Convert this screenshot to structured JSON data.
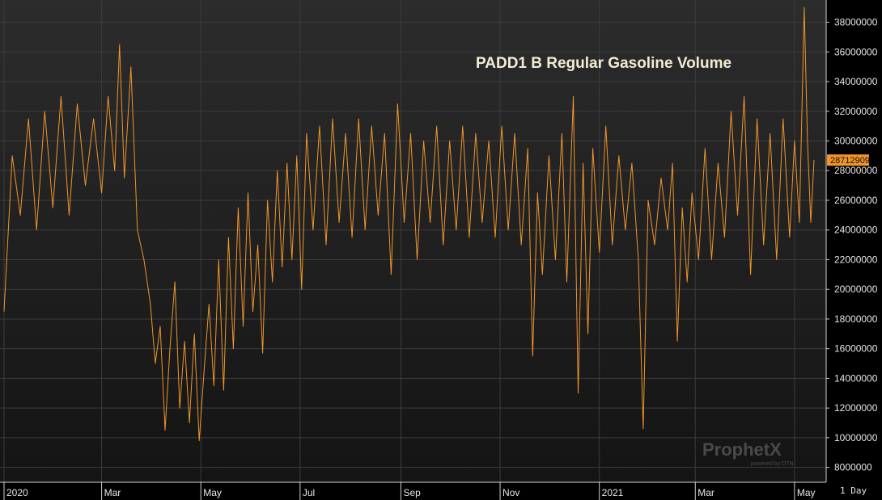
{
  "chart_data": {
    "type": "line",
    "title": "PADD1 B Regular Gasoline Volume",
    "xlabel": "",
    "ylabel": "",
    "ylim": [
      7000000,
      39500000
    ],
    "y_ticks": [
      8000000,
      10000000,
      12000000,
      14000000,
      16000000,
      18000000,
      20000000,
      22000000,
      24000000,
      26000000,
      28000000,
      30000000,
      32000000,
      34000000,
      36000000,
      38000000
    ],
    "y_tick_labels": [
      "8000000",
      "10000000",
      "12000000",
      "14000000",
      "16000000",
      "18000000",
      "20000000",
      "22000000",
      "24000000",
      "26000000",
      "28000000",
      "30000000",
      "32000000",
      "34000000",
      "36000000",
      "38000000"
    ],
    "x_tick_labels": [
      "2020",
      "Mar",
      "May",
      "Jul",
      "Sep",
      "Nov",
      "2021",
      "Mar",
      "May"
    ],
    "x_tick_dates": [
      "2020-01-01",
      "2020-03-01",
      "2020-05-01",
      "2020-07-01",
      "2020-09-01",
      "2020-11-01",
      "2021-01-01",
      "2021-03-01",
      "2021-05-01"
    ],
    "x_range": [
      "2020-01-01",
      "2021-05-14"
    ],
    "series": [
      {
        "name": "",
        "color": "#f0952a",
        "points": [
          [
            "2020-01-01",
            18500000
          ],
          [
            "2020-01-06",
            29000000
          ],
          [
            "2020-01-11",
            25000000
          ],
          [
            "2020-01-16",
            31500000
          ],
          [
            "2020-01-21",
            24000000
          ],
          [
            "2020-01-26",
            32000000
          ],
          [
            "2020-01-31",
            25500000
          ],
          [
            "2020-02-05",
            33000000
          ],
          [
            "2020-02-10",
            25000000
          ],
          [
            "2020-02-15",
            32500000
          ],
          [
            "2020-02-20",
            27000000
          ],
          [
            "2020-02-25",
            31500000
          ],
          [
            "2020-03-01",
            26500000
          ],
          [
            "2020-03-05",
            33000000
          ],
          [
            "2020-03-09",
            28000000
          ],
          [
            "2020-03-12",
            36500000
          ],
          [
            "2020-03-15",
            27500000
          ],
          [
            "2020-03-19",
            35000000
          ],
          [
            "2020-03-23",
            24000000
          ],
          [
            "2020-03-27",
            22000000
          ],
          [
            "2020-03-31",
            19000000
          ],
          [
            "2020-04-03",
            15000000
          ],
          [
            "2020-04-06",
            17500000
          ],
          [
            "2020-04-09",
            10500000
          ],
          [
            "2020-04-12",
            16000000
          ],
          [
            "2020-04-15",
            20500000
          ],
          [
            "2020-04-18",
            12000000
          ],
          [
            "2020-04-21",
            16500000
          ],
          [
            "2020-04-24",
            11000000
          ],
          [
            "2020-04-27",
            17000000
          ],
          [
            "2020-04-30",
            9800000
          ],
          [
            "2020-05-03",
            14500000
          ],
          [
            "2020-05-06",
            19000000
          ],
          [
            "2020-05-09",
            13500000
          ],
          [
            "2020-05-12",
            22000000
          ],
          [
            "2020-05-15",
            13200000
          ],
          [
            "2020-05-18",
            23500000
          ],
          [
            "2020-05-21",
            16000000
          ],
          [
            "2020-05-24",
            25500000
          ],
          [
            "2020-05-27",
            17500000
          ],
          [
            "2020-05-30",
            26500000
          ],
          [
            "2020-06-02",
            18500000
          ],
          [
            "2020-06-05",
            23000000
          ],
          [
            "2020-06-08",
            15700000
          ],
          [
            "2020-06-11",
            26000000
          ],
          [
            "2020-06-14",
            20500000
          ],
          [
            "2020-06-17",
            28000000
          ],
          [
            "2020-06-20",
            21500000
          ],
          [
            "2020-06-23",
            28500000
          ],
          [
            "2020-06-26",
            22000000
          ],
          [
            "2020-06-29",
            29000000
          ],
          [
            "2020-07-02",
            20000000
          ],
          [
            "2020-07-05",
            30500000
          ],
          [
            "2020-07-09",
            24000000
          ],
          [
            "2020-07-13",
            31000000
          ],
          [
            "2020-07-17",
            23000000
          ],
          [
            "2020-07-21",
            31500000
          ],
          [
            "2020-07-25",
            24500000
          ],
          [
            "2020-07-29",
            30500000
          ],
          [
            "2020-08-02",
            23500000
          ],
          [
            "2020-08-06",
            31500000
          ],
          [
            "2020-08-10",
            24000000
          ],
          [
            "2020-08-14",
            31000000
          ],
          [
            "2020-08-18",
            25000000
          ],
          [
            "2020-08-22",
            30500000
          ],
          [
            "2020-08-26",
            21000000
          ],
          [
            "2020-08-30",
            32500000
          ],
          [
            "2020-09-03",
            24500000
          ],
          [
            "2020-09-07",
            30500000
          ],
          [
            "2020-09-11",
            22000000
          ],
          [
            "2020-09-15",
            30000000
          ],
          [
            "2020-09-19",
            24500000
          ],
          [
            "2020-09-23",
            31000000
          ],
          [
            "2020-09-27",
            23000000
          ],
          [
            "2020-10-01",
            30000000
          ],
          [
            "2020-10-05",
            24000000
          ],
          [
            "2020-10-09",
            31000000
          ],
          [
            "2020-10-13",
            23500000
          ],
          [
            "2020-10-17",
            30500000
          ],
          [
            "2020-10-21",
            24500000
          ],
          [
            "2020-10-25",
            30000000
          ],
          [
            "2020-10-29",
            23500000
          ],
          [
            "2020-11-02",
            31000000
          ],
          [
            "2020-11-06",
            24000000
          ],
          [
            "2020-11-10",
            30500000
          ],
          [
            "2020-11-14",
            23000000
          ],
          [
            "2020-11-18",
            29500000
          ],
          [
            "2020-11-21",
            15500000
          ],
          [
            "2020-11-24",
            26500000
          ],
          [
            "2020-11-27",
            21000000
          ],
          [
            "2020-12-01",
            29000000
          ],
          [
            "2020-12-05",
            22000000
          ],
          [
            "2020-12-09",
            30500000
          ],
          [
            "2020-12-12",
            20500000
          ],
          [
            "2020-12-16",
            33000000
          ],
          [
            "2020-12-19",
            13000000
          ],
          [
            "2020-12-22",
            28500000
          ],
          [
            "2020-12-25",
            17000000
          ],
          [
            "2020-12-28",
            29500000
          ],
          [
            "2021-01-01",
            22500000
          ],
          [
            "2021-01-05",
            31000000
          ],
          [
            "2021-01-09",
            23000000
          ],
          [
            "2021-01-13",
            29000000
          ],
          [
            "2021-01-17",
            24000000
          ],
          [
            "2021-01-21",
            28500000
          ],
          [
            "2021-01-25",
            22000000
          ],
          [
            "2021-01-28",
            10600000
          ],
          [
            "2021-01-31",
            26000000
          ],
          [
            "2021-02-04",
            23000000
          ],
          [
            "2021-02-08",
            27500000
          ],
          [
            "2021-02-12",
            24000000
          ],
          [
            "2021-02-15",
            28500000
          ],
          [
            "2021-02-18",
            16500000
          ],
          [
            "2021-02-21",
            25500000
          ],
          [
            "2021-02-24",
            20500000
          ],
          [
            "2021-02-27",
            26500000
          ],
          [
            "2021-03-03",
            22000000
          ],
          [
            "2021-03-07",
            29500000
          ],
          [
            "2021-03-11",
            22000000
          ],
          [
            "2021-03-15",
            28500000
          ],
          [
            "2021-03-19",
            23500000
          ],
          [
            "2021-03-23",
            32000000
          ],
          [
            "2021-03-27",
            25000000
          ],
          [
            "2021-03-31",
            33000000
          ],
          [
            "2021-04-04",
            21000000
          ],
          [
            "2021-04-08",
            31500000
          ],
          [
            "2021-04-12",
            23000000
          ],
          [
            "2021-04-16",
            30500000
          ],
          [
            "2021-04-20",
            22000000
          ],
          [
            "2021-04-24",
            31500000
          ],
          [
            "2021-04-28",
            23500000
          ],
          [
            "2021-05-01",
            30000000
          ],
          [
            "2021-05-04",
            24500000
          ],
          [
            "2021-05-07",
            39000000
          ],
          [
            "2021-05-09",
            30000000
          ],
          [
            "2021-05-11",
            24500000
          ],
          [
            "2021-05-13",
            28712909
          ]
        ]
      }
    ],
    "last_value_label": "28712909",
    "last_value": 28712909,
    "interval_label": "1 Day",
    "grid": true,
    "watermark_main": "ProphetX",
    "watermark_sub": "powered by DTN",
    "colors": {
      "background_top": "#2c2c2c",
      "background_bottom": "#141414",
      "grid": "#3c3c3c",
      "line": "#f0952a",
      "last_value_bg": "#f0952a"
    }
  }
}
